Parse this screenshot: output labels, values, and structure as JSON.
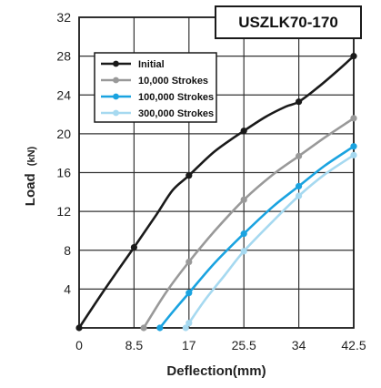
{
  "chart_data": {
    "type": "line",
    "title": "USZLK70-170",
    "xlabel": "Deflection(mm)",
    "ylabel": "Load",
    "ylabel_unit": "(kN)",
    "xlim": [
      0,
      42.5
    ],
    "ylim": [
      0,
      32
    ],
    "x_ticks": [
      0,
      8.5,
      17,
      25.5,
      34,
      42.5
    ],
    "x_tick_labels": [
      "0",
      "8.5",
      "17",
      "25.5",
      "34",
      "42.5"
    ],
    "y_ticks": [
      4,
      8,
      12,
      16,
      20,
      24,
      28,
      32
    ],
    "y_tick_labels": [
      "4",
      "8",
      "12",
      "16",
      "20",
      "24",
      "28",
      "32"
    ],
    "grid": true,
    "legend_position": "top-left",
    "series": [
      {
        "name": "Initial",
        "color": "#1a1a1a",
        "points": [
          [
            0,
            0
          ],
          [
            8.5,
            8.3
          ],
          [
            17,
            15.7
          ],
          [
            25.5,
            20.3
          ],
          [
            34,
            23.3
          ],
          [
            42.5,
            28.0
          ]
        ],
        "curve": [
          [
            0,
            0
          ],
          [
            4,
            4
          ],
          [
            8.5,
            8.3
          ],
          [
            12,
            11.7
          ],
          [
            14.5,
            14.2
          ],
          [
            17,
            15.7
          ],
          [
            21,
            18.2
          ],
          [
            25.5,
            20.3
          ],
          [
            29,
            21.8
          ],
          [
            32,
            22.8
          ],
          [
            34,
            23.3
          ],
          [
            37,
            24.8
          ],
          [
            40,
            26.5
          ],
          [
            42.5,
            28.0
          ]
        ]
      },
      {
        "name": "10,000 Strokes",
        "color": "#999999",
        "points": [
          [
            10,
            0
          ],
          [
            17,
            6.8
          ],
          [
            25.5,
            13.2
          ],
          [
            34,
            17.7
          ],
          [
            42.5,
            21.6
          ]
        ],
        "curve": [
          [
            10,
            0
          ],
          [
            13.5,
            3.7
          ],
          [
            17,
            6.8
          ],
          [
            21,
            10.0
          ],
          [
            25.5,
            13.2
          ],
          [
            30,
            15.8
          ],
          [
            34,
            17.7
          ],
          [
            38,
            19.6
          ],
          [
            42.5,
            21.6
          ]
        ]
      },
      {
        "name": "100,000 Strokes",
        "color": "#1aa3e0",
        "points": [
          [
            12.5,
            0
          ],
          [
            17,
            3.6
          ],
          [
            25.5,
            9.7
          ],
          [
            34,
            14.6
          ],
          [
            42.5,
            18.7
          ]
        ],
        "curve": [
          [
            12.5,
            0
          ],
          [
            14.8,
            1.9
          ],
          [
            17,
            3.6
          ],
          [
            21,
            6.7
          ],
          [
            25.5,
            9.7
          ],
          [
            30,
            12.5
          ],
          [
            34,
            14.6
          ],
          [
            38,
            16.7
          ],
          [
            42.5,
            18.7
          ]
        ]
      },
      {
        "name": "300,000 Strokes",
        "color": "#a6d9f0",
        "points": [
          [
            16.5,
            0
          ],
          [
            17,
            0.5
          ],
          [
            25.5,
            7.9
          ],
          [
            34,
            13.6
          ],
          [
            42.5,
            17.8
          ]
        ],
        "curve": [
          [
            16.5,
            0
          ],
          [
            17,
            0.5
          ],
          [
            19.5,
            2.9
          ],
          [
            22.5,
            5.4
          ],
          [
            25.5,
            7.9
          ],
          [
            30,
            11.0
          ],
          [
            34,
            13.6
          ],
          [
            38,
            15.8
          ],
          [
            42.5,
            17.8
          ]
        ]
      }
    ]
  }
}
